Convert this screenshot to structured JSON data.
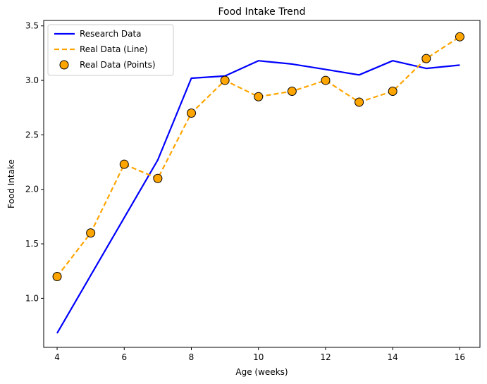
{
  "chart_data": {
    "type": "line",
    "title": "Food Intake Trend",
    "xlabel": "Age (weeks)",
    "ylabel": "Food Intake",
    "xlim": [
      3.6,
      16.6
    ],
    "ylim": [
      0.55,
      3.55
    ],
    "xticks": [
      4,
      6,
      8,
      10,
      12,
      14,
      16
    ],
    "yticks": [
      1.0,
      1.5,
      2.0,
      2.5,
      3.0,
      3.5
    ],
    "ytick_labels": [
      "1.0",
      "1.5",
      "2.0",
      "2.5",
      "3.0",
      "3.5"
    ],
    "legend_position": "top-left",
    "series": [
      {
        "name": "Research Data",
        "style": "solid-line",
        "color": "#0000ff",
        "x": [
          4,
          7,
          8,
          9,
          10,
          11,
          12,
          13,
          14,
          15,
          16
        ],
        "y": [
          0.68,
          2.27,
          3.02,
          3.04,
          3.18,
          3.15,
          3.1,
          3.05,
          3.18,
          3.11,
          3.14
        ]
      },
      {
        "name": "Real Data (Line)",
        "style": "dashed-line",
        "color": "#ffa500",
        "x": [
          4,
          5,
          6,
          7,
          8,
          9,
          10,
          11,
          12,
          13,
          14,
          15,
          16
        ],
        "y": [
          1.2,
          1.6,
          2.23,
          2.1,
          2.7,
          3.0,
          2.85,
          2.9,
          3.0,
          2.8,
          2.9,
          3.2,
          3.4
        ]
      },
      {
        "name": "Real Data (Points)",
        "style": "markers",
        "color": "#ffa500",
        "edge_color": "#000000",
        "x": [
          4,
          5,
          6,
          7,
          8,
          9,
          10,
          11,
          12,
          13,
          14,
          15,
          16
        ],
        "y": [
          1.2,
          1.6,
          2.23,
          2.1,
          2.7,
          3.0,
          2.85,
          2.9,
          3.0,
          2.8,
          2.9,
          3.2,
          3.4
        ]
      }
    ]
  }
}
